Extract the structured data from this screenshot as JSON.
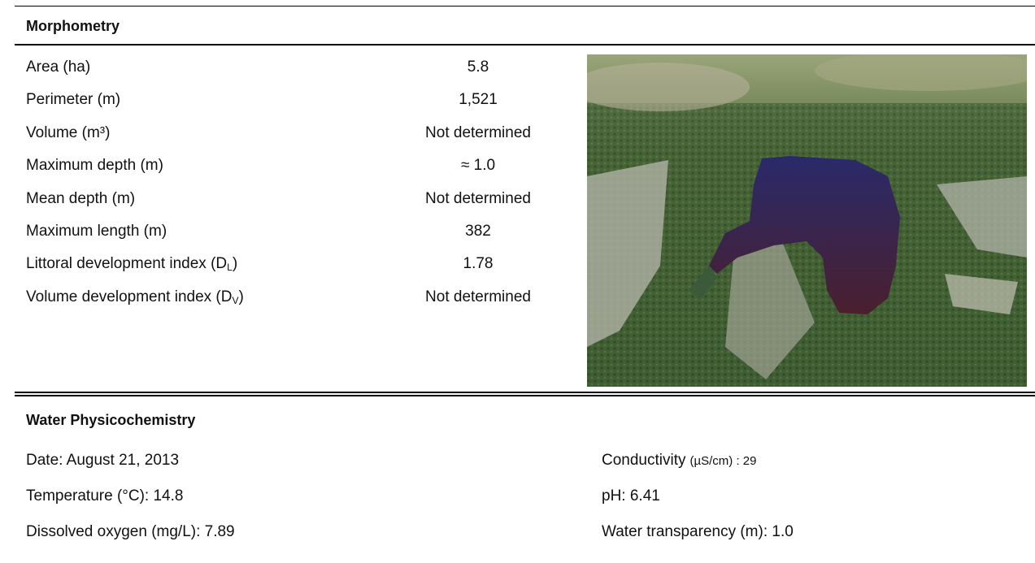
{
  "morphometry": {
    "title": "Morphometry",
    "rows": [
      {
        "label": "Area (ha)",
        "value": "5.8"
      },
      {
        "label": "Perimeter (m)",
        "value": "1,521"
      },
      {
        "label": "Volume (m³)",
        "value": "Not determined"
      },
      {
        "label": "Maximum depth (m)",
        "value": "≈ 1.0"
      },
      {
        "label": "Mean depth (m)",
        "value": "Not determined"
      },
      {
        "label": "Maximum length (m)",
        "value": "382"
      },
      {
        "label": "Littoral development index (D",
        "label_sub": "L",
        "label_end": ")",
        "value": "1.78"
      },
      {
        "label": "Volume development index (D",
        "label_sub": "V",
        "label_end": ")",
        "value": "Not determined"
      }
    ]
  },
  "water_physicochemistry": {
    "title": "Water Physicochemistry",
    "left": [
      "Date: August 21, 2013",
      "Temperature (°C): 14.8",
      "Dissolved oxygen (mg/L): 7.89"
    ],
    "right": [
      {
        "label": "Conductivity",
        "note": "(µS/cm) : 29"
      },
      {
        "label": "pH: 6.41"
      },
      {
        "label": "Water transparency (m): 1.0"
      }
    ]
  }
}
